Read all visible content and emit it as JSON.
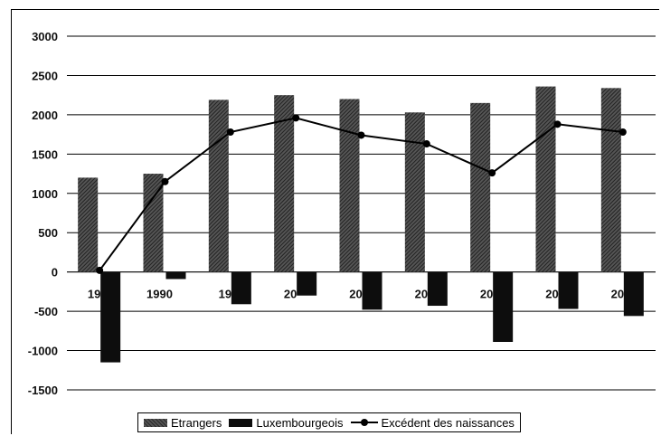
{
  "chart_data": {
    "type": "bar",
    "categories": [
      "19",
      "1990",
      "19",
      "20",
      "20",
      "20",
      "20",
      "20",
      "20"
    ],
    "series": [
      {
        "name": "Etrangers",
        "kind": "bar",
        "values": [
          1200,
          1250,
          2190,
          2250,
          2200,
          2030,
          2150,
          2360,
          2340
        ],
        "color": "#3e3e3e"
      },
      {
        "name": "Luxembourgeois",
        "kind": "bar",
        "values": [
          -1150,
          -90,
          -410,
          -300,
          -480,
          -430,
          -890,
          -470,
          -560
        ],
        "color": "#0d0d0d"
      },
      {
        "name": "Excédent des naissances",
        "kind": "line",
        "values": [
          20,
          1150,
          1780,
          1960,
          1740,
          1630,
          1260,
          1880,
          1780
        ],
        "color": "#000000"
      }
    ],
    "y_ticks": [
      "3000",
      "2500",
      "2000",
      "1500",
      "1000",
      "500",
      "0",
      "-500",
      "-1000",
      "-1500"
    ],
    "ylim": [
      -1500,
      3000
    ],
    "grid": true,
    "legend_position": "bottom"
  }
}
